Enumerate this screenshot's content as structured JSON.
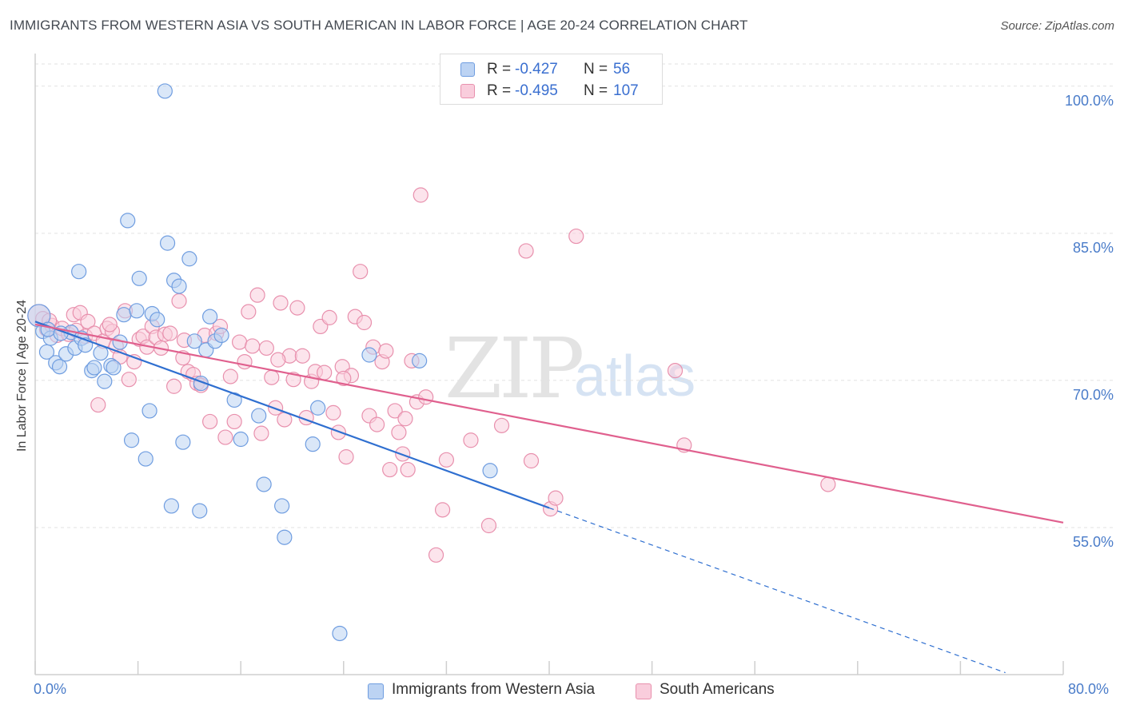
{
  "header": {
    "title": "IMMIGRANTS FROM WESTERN ASIA VS SOUTH AMERICAN IN LABOR FORCE | AGE 20-24 CORRELATION CHART",
    "source": "Source: ZipAtlas.com"
  },
  "watermark": {
    "zip": "ZIP",
    "atlas": "atlas"
  },
  "legend": {
    "rows": [
      {
        "r_label": "R =",
        "r_value": "-0.427",
        "n_label": "N =",
        "n_value": "56",
        "color": "#a9c6ef",
        "border": "#6f9de0"
      },
      {
        "r_label": "R =",
        "r_value": "-0.495",
        "n_label": "N =",
        "n_value": "107",
        "color": "#f7bfd2",
        "border": "#e890ad"
      }
    ]
  },
  "bottom_legend": [
    {
      "label": "Immigrants from Western Asia",
      "color": "#a9c6ef",
      "border": "#6f9de0"
    },
    {
      "label": "South Americans",
      "color": "#f7bfd2",
      "border": "#e890ad"
    }
  ],
  "chart_data": {
    "type": "scatter",
    "title": "IMMIGRANTS FROM WESTERN ASIA VS SOUTH AMERICAN IN LABOR FORCE | AGE 20-24 CORRELATION CHART",
    "xlabel": "",
    "ylabel": "In Labor Force | Age 20-24",
    "xlim": [
      0,
      80
    ],
    "ylim": [
      40,
      103
    ],
    "x_tick_labels": [
      "0.0%",
      "80.0%"
    ],
    "y_ticks": [
      55,
      70,
      85,
      100
    ],
    "y_tick_labels": [
      "55.0%",
      "70.0%",
      "85.0%",
      "100.0%"
    ],
    "grid": true,
    "colors": {
      "blue": "#6f9de0",
      "blue_fill": "#bcd3f3",
      "blue_line": "#2f6fd0",
      "pink": "#e890ad",
      "pink_fill": "#f9cddc",
      "pink_line": "#e0608e"
    },
    "series": [
      {
        "name": "Immigrants from Western Asia",
        "points": [
          [
            0.3,
            76.6
          ],
          [
            0.6,
            75.0
          ],
          [
            0.9,
            72.9
          ],
          [
            1.2,
            74.3
          ],
          [
            1.6,
            71.8
          ],
          [
            1.9,
            71.4
          ],
          [
            2.4,
            72.7
          ],
          [
            2.8,
            74.9
          ],
          [
            3.1,
            73.3
          ],
          [
            3.4,
            81.1
          ],
          [
            3.6,
            74.3
          ],
          [
            3.9,
            73.6
          ],
          [
            4.4,
            71.0
          ],
          [
            4.6,
            71.3
          ],
          [
            5.1,
            72.8
          ],
          [
            5.4,
            69.9
          ],
          [
            5.9,
            71.5
          ],
          [
            6.1,
            71.3
          ],
          [
            6.6,
            73.9
          ],
          [
            6.9,
            76.7
          ],
          [
            7.2,
            86.3
          ],
          [
            7.5,
            63.9
          ],
          [
            7.9,
            77.1
          ],
          [
            8.1,
            80.4
          ],
          [
            8.6,
            62.0
          ],
          [
            8.9,
            66.9
          ],
          [
            9.1,
            76.8
          ],
          [
            10.1,
            99.5
          ],
          [
            10.3,
            84.0
          ],
          [
            10.6,
            57.2
          ],
          [
            10.8,
            80.2
          ],
          [
            11.2,
            79.6
          ],
          [
            11.5,
            63.7
          ],
          [
            12.0,
            82.4
          ],
          [
            12.4,
            74.0
          ],
          [
            12.8,
            56.7
          ],
          [
            12.9,
            69.7
          ],
          [
            13.3,
            73.1
          ],
          [
            13.6,
            76.5
          ],
          [
            14.0,
            74.0
          ],
          [
            15.5,
            68.0
          ],
          [
            16.0,
            64.0
          ],
          [
            17.4,
            66.4
          ],
          [
            17.8,
            59.4
          ],
          [
            19.2,
            57.2
          ],
          [
            19.4,
            54.0
          ],
          [
            21.6,
            63.5
          ],
          [
            22.0,
            67.2
          ],
          [
            23.7,
            44.2
          ],
          [
            26.0,
            72.6
          ],
          [
            29.9,
            72.0
          ],
          [
            35.4,
            60.8
          ],
          [
            1.0,
            75.2
          ],
          [
            2.0,
            74.8
          ],
          [
            9.5,
            76.2
          ],
          [
            14.5,
            74.6
          ]
        ]
      },
      {
        "name": "South Americans",
        "points": [
          [
            0.3,
            76.6
          ],
          [
            0.6,
            76.3
          ],
          [
            0.9,
            75.2
          ],
          [
            1.3,
            75.6
          ],
          [
            1.7,
            74.6
          ],
          [
            2.1,
            75.3
          ],
          [
            2.6,
            74.7
          ],
          [
            3.0,
            76.7
          ],
          [
            3.2,
            75.1
          ],
          [
            3.5,
            76.9
          ],
          [
            3.9,
            74.5
          ],
          [
            4.1,
            76.0
          ],
          [
            4.6,
            74.8
          ],
          [
            4.9,
            67.5
          ],
          [
            5.3,
            74.0
          ],
          [
            5.6,
            75.3
          ],
          [
            6.0,
            75.0
          ],
          [
            6.3,
            73.5
          ],
          [
            6.6,
            72.4
          ],
          [
            7.0,
            77.1
          ],
          [
            7.3,
            70.1
          ],
          [
            7.7,
            71.9
          ],
          [
            8.1,
            74.2
          ],
          [
            8.4,
            74.5
          ],
          [
            8.7,
            73.4
          ],
          [
            9.1,
            75.5
          ],
          [
            9.4,
            74.4
          ],
          [
            9.8,
            73.3
          ],
          [
            10.1,
            74.7
          ],
          [
            10.5,
            74.8
          ],
          [
            10.8,
            69.4
          ],
          [
            11.2,
            78.1
          ],
          [
            11.5,
            72.3
          ],
          [
            11.9,
            70.9
          ],
          [
            12.3,
            70.6
          ],
          [
            12.6,
            69.7
          ],
          [
            12.9,
            69.5
          ],
          [
            13.2,
            74.6
          ],
          [
            13.6,
            65.8
          ],
          [
            14.1,
            74.8
          ],
          [
            14.4,
            75.5
          ],
          [
            14.8,
            64.2
          ],
          [
            15.2,
            70.4
          ],
          [
            15.5,
            65.8
          ],
          [
            15.9,
            73.9
          ],
          [
            16.3,
            71.9
          ],
          [
            16.6,
            77.0
          ],
          [
            16.9,
            73.5
          ],
          [
            17.3,
            78.7
          ],
          [
            17.6,
            64.6
          ],
          [
            18.0,
            73.3
          ],
          [
            18.4,
            70.3
          ],
          [
            18.7,
            67.2
          ],
          [
            19.1,
            77.9
          ],
          [
            19.4,
            66.0
          ],
          [
            19.8,
            72.5
          ],
          [
            20.1,
            70.1
          ],
          [
            20.4,
            77.4
          ],
          [
            20.8,
            72.5
          ],
          [
            21.1,
            66.2
          ],
          [
            21.5,
            69.9
          ],
          [
            21.8,
            70.9
          ],
          [
            22.2,
            75.5
          ],
          [
            22.5,
            70.8
          ],
          [
            22.9,
            76.4
          ],
          [
            23.2,
            66.7
          ],
          [
            23.6,
            64.7
          ],
          [
            23.9,
            71.4
          ],
          [
            24.2,
            62.2
          ],
          [
            24.6,
            70.5
          ],
          [
            24.9,
            76.5
          ],
          [
            25.3,
            81.1
          ],
          [
            25.6,
            75.9
          ],
          [
            26.0,
            66.4
          ],
          [
            26.3,
            73.4
          ],
          [
            26.6,
            65.5
          ],
          [
            27.0,
            71.9
          ],
          [
            27.3,
            73.0
          ],
          [
            27.6,
            60.9
          ],
          [
            28.0,
            66.9
          ],
          [
            28.3,
            64.7
          ],
          [
            28.6,
            62.5
          ],
          [
            29.0,
            60.9
          ],
          [
            29.3,
            72.0
          ],
          [
            29.7,
            67.8
          ],
          [
            30.0,
            88.9
          ],
          [
            30.4,
            68.3
          ],
          [
            31.2,
            52.2
          ],
          [
            31.7,
            56.8
          ],
          [
            32.0,
            61.9
          ],
          [
            35.3,
            55.2
          ],
          [
            36.3,
            65.4
          ],
          [
            38.2,
            83.2
          ],
          [
            38.6,
            61.8
          ],
          [
            40.1,
            56.9
          ],
          [
            40.5,
            58.0
          ],
          [
            42.1,
            84.7
          ],
          [
            49.8,
            71.0
          ],
          [
            50.5,
            63.4
          ],
          [
            61.7,
            59.4
          ],
          [
            1.1,
            76.1
          ],
          [
            5.8,
            75.7
          ],
          [
            11.6,
            74.1
          ],
          [
            18.9,
            72.1
          ],
          [
            24.0,
            70.2
          ],
          [
            28.8,
            66.1
          ],
          [
            33.9,
            63.9
          ]
        ]
      }
    ],
    "trend_lines": [
      {
        "series": "Immigrants from Western Asia",
        "x0": 0,
        "y0": 76.0,
        "x1": 40,
        "y1": 57.0,
        "dashed_to_x": 75.5,
        "dashed_to_y": 40.2
      },
      {
        "series": "South Americans",
        "x0": 0,
        "y0": 75.7,
        "x1": 80,
        "y1": 55.5
      }
    ]
  }
}
